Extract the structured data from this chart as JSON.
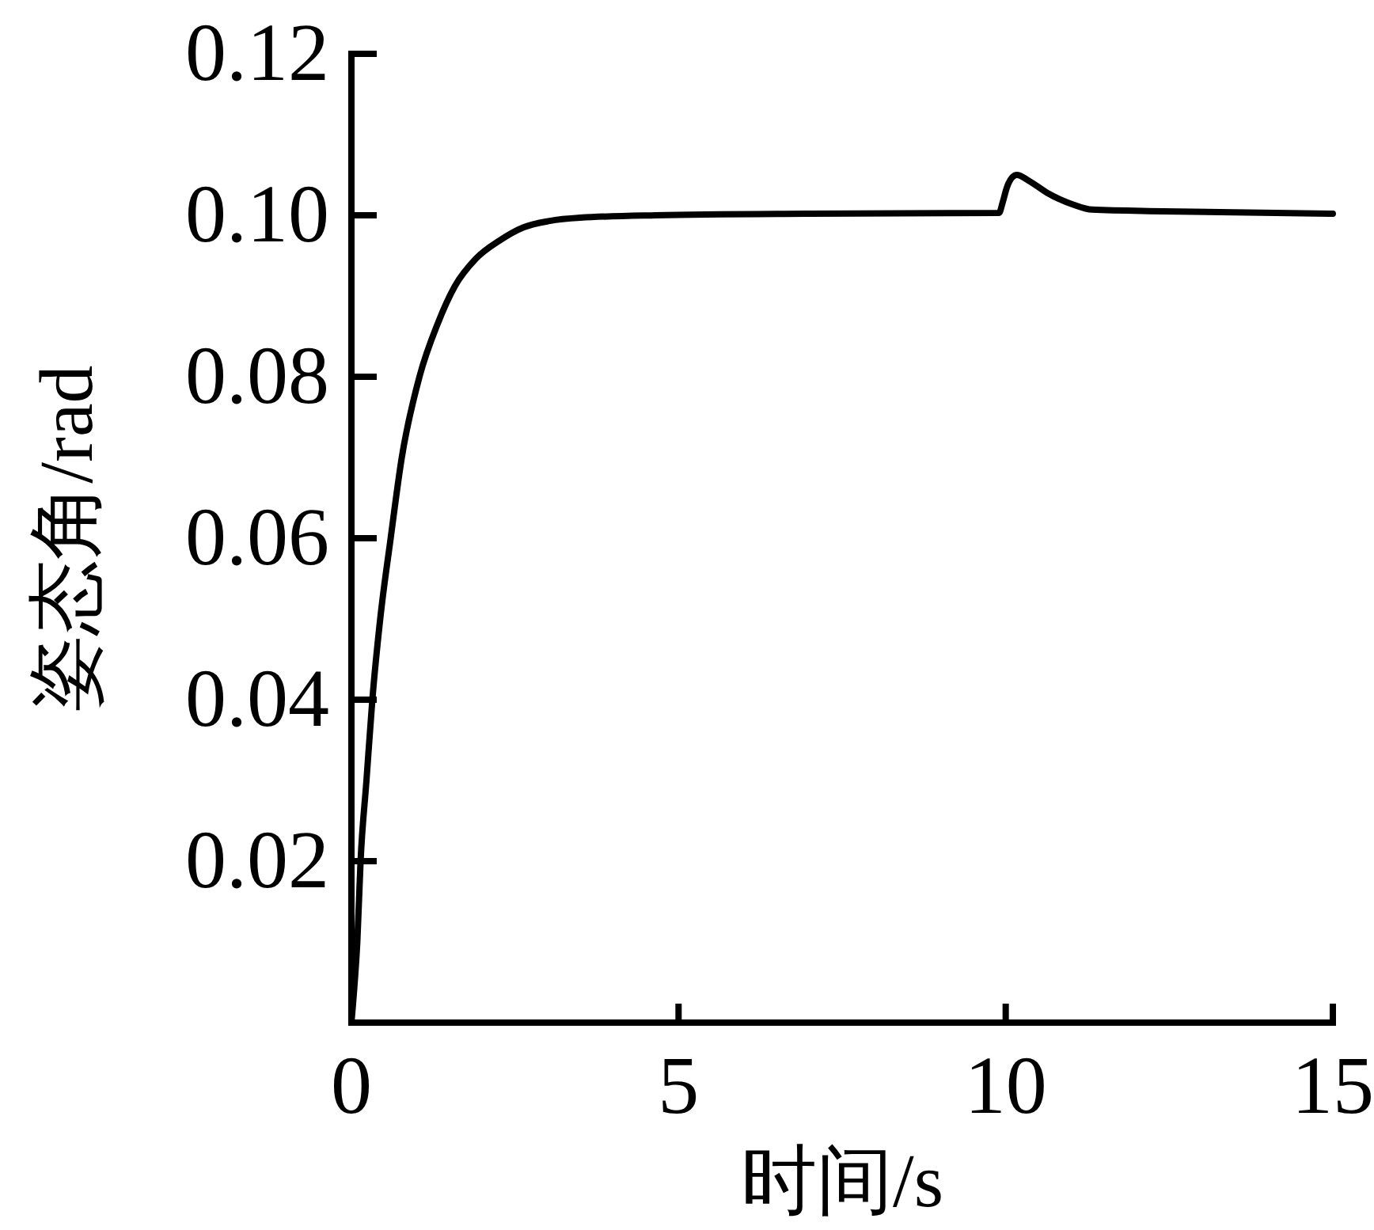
{
  "chart_data": {
    "type": "line",
    "xlabel": "时间/s",
    "ylabel": "姿态角/rad",
    "xlim": [
      0,
      15
    ],
    "xticks": [
      0,
      5,
      10,
      15
    ],
    "ylim": [
      0,
      0.12
    ],
    "yticks": [
      0.02,
      0.04,
      0.06,
      0.08,
      {
        "value": 0.1,
        "label": "0.10"
      },
      0.12
    ],
    "x": [
      0,
      0.05,
      0.09,
      0.14,
      0.23,
      0.32,
      0.44,
      0.6,
      0.77,
      1.04,
      1.32,
      1.58,
      1.9,
      2.27,
      2.63,
      3.03,
      3.5,
      4.65,
      7,
      9.9,
      9.95,
      10.02,
      10.1,
      10.17,
      10.35,
      10.63,
      11.04,
      11.32,
      12.4,
      15
    ],
    "series": [
      {
        "color": "#000000",
        "values": [
          0,
          0.005,
          0.01,
          0.02,
          0.03,
          0.04,
          0.05,
          0.06,
          0.07,
          0.08,
          0.0866,
          0.0912,
          0.0946,
          0.0969,
          0.0985,
          0.0993,
          0.0997,
          0.1,
          0.1002,
          0.1003,
          0.1015,
          0.1035,
          0.1047,
          0.105,
          0.1043,
          0.1028,
          0.1013,
          0.1007,
          0.1005,
          0.1002
        ]
      }
    ]
  }
}
